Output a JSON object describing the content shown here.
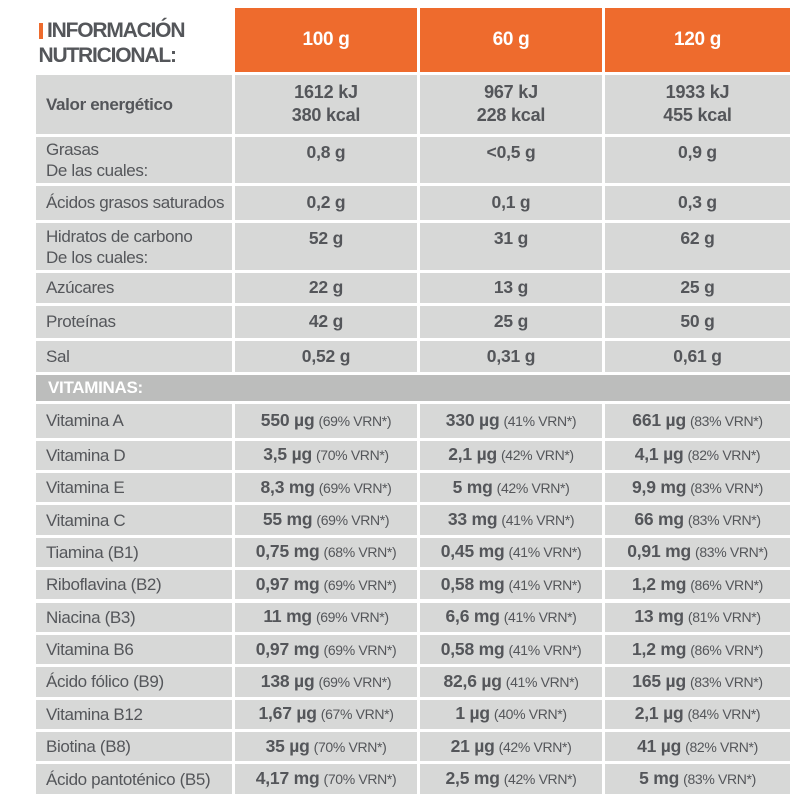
{
  "title": "INFORMACIÓN NUTRICIONAL:",
  "colors": {
    "accent_orange": "#EE6B2D",
    "row_gray": "#D7D8D7",
    "section_gray": "#BCBDBC",
    "text_gray": "#54565A"
  },
  "columns": [
    "100 g",
    "60 g",
    "120 g"
  ],
  "main_rows": [
    {
      "label": "Valor energético",
      "sublabel": "",
      "values": [
        [
          "1612 kJ",
          "380 kcal"
        ],
        [
          "967 kJ",
          "228 kcal"
        ],
        [
          "1933 kJ",
          "455 kcal"
        ]
      ]
    },
    {
      "label": "Grasas",
      "sublabel": "De las cuales:",
      "values": [
        [
          "0,8 g"
        ],
        [
          "<0,5 g"
        ],
        [
          "0,9 g"
        ]
      ]
    },
    {
      "label": "Ácidos grasos saturados",
      "sublabel": "",
      "values": [
        [
          "0,2 g"
        ],
        [
          "0,1 g"
        ],
        [
          "0,3 g"
        ]
      ]
    },
    {
      "label": "Hidratos de carbono",
      "sublabel": "De los cuales:",
      "values": [
        [
          "52 g"
        ],
        [
          "31 g"
        ],
        [
          "62 g"
        ]
      ]
    },
    {
      "label": "Azúcares",
      "sublabel": "",
      "values": [
        [
          "22 g"
        ],
        [
          "13 g"
        ],
        [
          "25 g"
        ]
      ]
    },
    {
      "label": "Proteínas",
      "sublabel": "",
      "values": [
        [
          "42 g"
        ],
        [
          "25 g"
        ],
        [
          "50 g"
        ]
      ]
    },
    {
      "label": "Sal",
      "sublabel": "",
      "values": [
        [
          "0,52 g"
        ],
        [
          "0,31 g"
        ],
        [
          "0,61 g"
        ]
      ]
    }
  ],
  "section_title": "VITAMINAS:",
  "vitamin_rows": [
    {
      "label": "Vitamina A",
      "values": [
        {
          "amount": "550 µg",
          "vrn": "(69% VRN*)"
        },
        {
          "amount": "330 µg",
          "vrn": "(41% VRN*)"
        },
        {
          "amount": "661 µg",
          "vrn": "(83% VRN*)"
        }
      ]
    },
    {
      "label": "Vitamina D",
      "values": [
        {
          "amount": "3,5 µg",
          "vrn": "(70% VRN*)"
        },
        {
          "amount": "2,1 µg",
          "vrn": "(42% VRN*)"
        },
        {
          "amount": "4,1 µg",
          "vrn": "(82% VRN*)"
        }
      ]
    },
    {
      "label": "Vitamina E",
      "values": [
        {
          "amount": "8,3 mg",
          "vrn": "(69% VRN*)"
        },
        {
          "amount": "5 mg",
          "vrn": "(42% VRN*)"
        },
        {
          "amount": "9,9 mg",
          "vrn": "(83% VRN*)"
        }
      ]
    },
    {
      "label": "Vitamina C",
      "values": [
        {
          "amount": "55 mg",
          "vrn": "(69% VRN*)"
        },
        {
          "amount": "33 mg",
          "vrn": "(41% VRN*)"
        },
        {
          "amount": "66 mg",
          "vrn": "(83% VRN*)"
        }
      ]
    },
    {
      "label": "Tiamina (B1)",
      "values": [
        {
          "amount": "0,75 mg",
          "vrn": "(68% VRN*)"
        },
        {
          "amount": "0,45 mg",
          "vrn": "(41% VRN*)"
        },
        {
          "amount": "0,91 mg",
          "vrn": "(83% VRN*)"
        }
      ]
    },
    {
      "label": "Riboflavina (B2)",
      "values": [
        {
          "amount": "0,97 mg",
          "vrn": "(69% VRN*)"
        },
        {
          "amount": "0,58 mg",
          "vrn": "(41% VRN*)"
        },
        {
          "amount": "1,2 mg",
          "vrn": "(86% VRN*)"
        }
      ]
    },
    {
      "label": "Niacina (B3)",
      "values": [
        {
          "amount": "11 mg",
          "vrn": "(69% VRN*)"
        },
        {
          "amount": "6,6 mg",
          "vrn": "(41% VRN*)"
        },
        {
          "amount": "13 mg",
          "vrn": "(81% VRN*)"
        }
      ]
    },
    {
      "label": "Vitamina B6",
      "values": [
        {
          "amount": "0,97 mg",
          "vrn": "(69% VRN*)"
        },
        {
          "amount": "0,58 mg",
          "vrn": "(41% VRN*)"
        },
        {
          "amount": "1,2 mg",
          "vrn": "(86% VRN*)"
        }
      ]
    },
    {
      "label": "Ácido fólico (B9)",
      "values": [
        {
          "amount": "138 µg",
          "vrn": "(69% VRN*)"
        },
        {
          "amount": "82,6 µg",
          "vrn": "(41% VRN*)"
        },
        {
          "amount": "165 µg",
          "vrn": "(83% VRN*)"
        }
      ]
    },
    {
      "label": "Vitamina B12",
      "values": [
        {
          "amount": "1,67 µg",
          "vrn": "(67% VRN*)"
        },
        {
          "amount": "1 µg",
          "vrn": "(40% VRN*)"
        },
        {
          "amount": "2,1 µg",
          "vrn": "(84% VRN*)"
        }
      ]
    },
    {
      "label": "Biotina (B8)",
      "values": [
        {
          "amount": "35 µg",
          "vrn": "(70% VRN*)"
        },
        {
          "amount": "21 µg",
          "vrn": "(42% VRN*)"
        },
        {
          "amount": "41 µg",
          "vrn": "(82% VRN*)"
        }
      ]
    },
    {
      "label": "Ácido pantoténico (B5)",
      "values": [
        {
          "amount": "4,17 mg",
          "vrn": "(70% VRN*)"
        },
        {
          "amount": "2,5 mg",
          "vrn": "(42% VRN*)"
        },
        {
          "amount": "5 mg",
          "vrn": "(83% VRN*)"
        }
      ]
    }
  ]
}
